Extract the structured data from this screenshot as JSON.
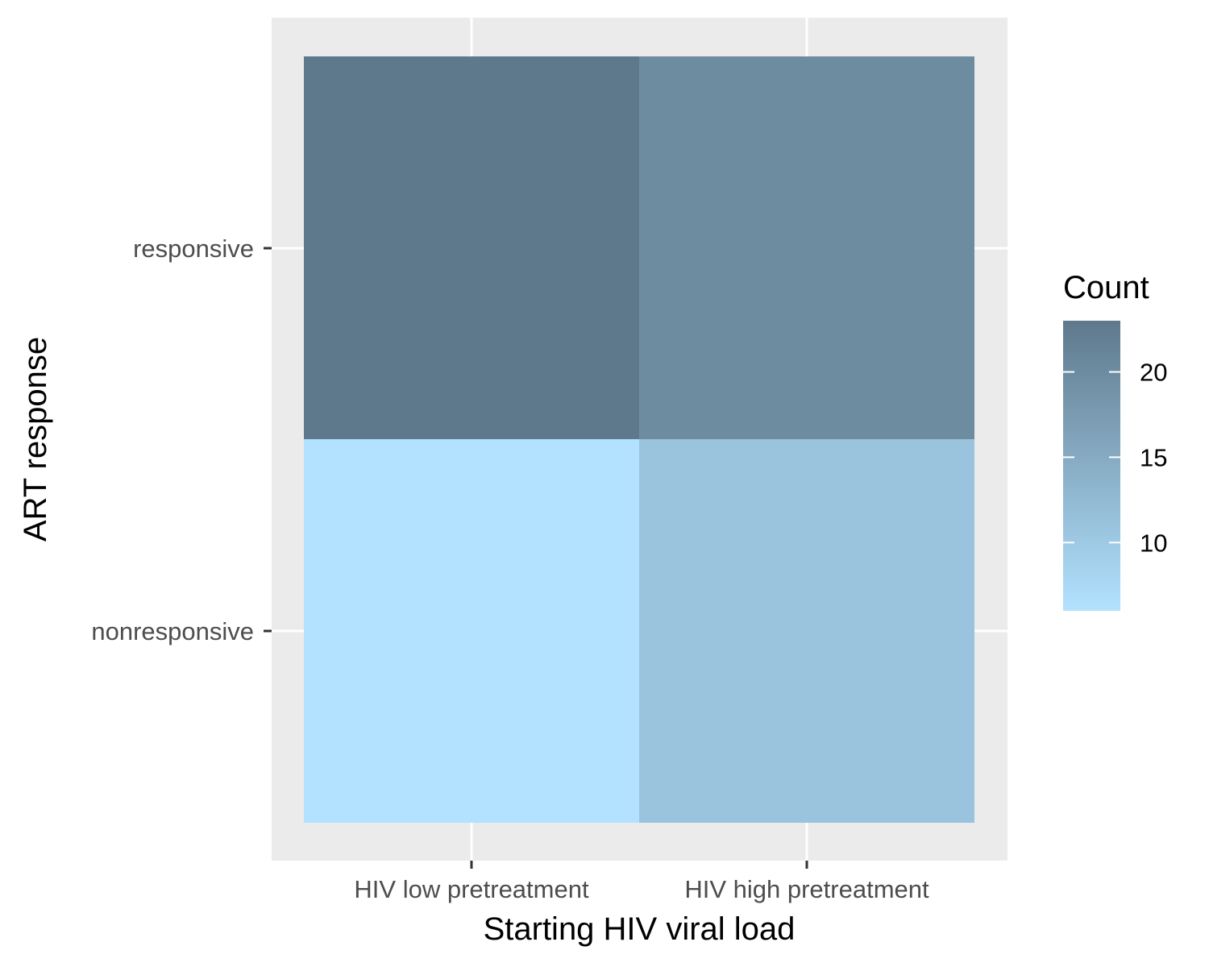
{
  "chart_data": {
    "type": "heatmap",
    "title": "",
    "xlabel": "Starting HIV viral load",
    "ylabel": "ART response",
    "x_categories": [
      "HIV low pretreatment",
      "HIV high pretreatment"
    ],
    "y_categories": [
      "nonresponsive",
      "responsive"
    ],
    "cells": [
      {
        "x": "HIV low pretreatment",
        "y": "responsive",
        "value": 23
      },
      {
        "x": "HIV high pretreatment",
        "y": "responsive",
        "value": 20
      },
      {
        "x": "HIV low pretreatment",
        "y": "nonresponsive",
        "value": 6
      },
      {
        "x": "HIV high pretreatment",
        "y": "nonresponsive",
        "value": 11
      }
    ],
    "legend": {
      "title": "Count",
      "ticks": [
        10,
        15,
        20
      ],
      "range": [
        6,
        23
      ],
      "low_color": "#b2e2ff",
      "high_color": "#5f798c",
      "placement": "right"
    },
    "grid": true,
    "panel_background": "#ebebeb",
    "grid_color": "#ffffff"
  }
}
